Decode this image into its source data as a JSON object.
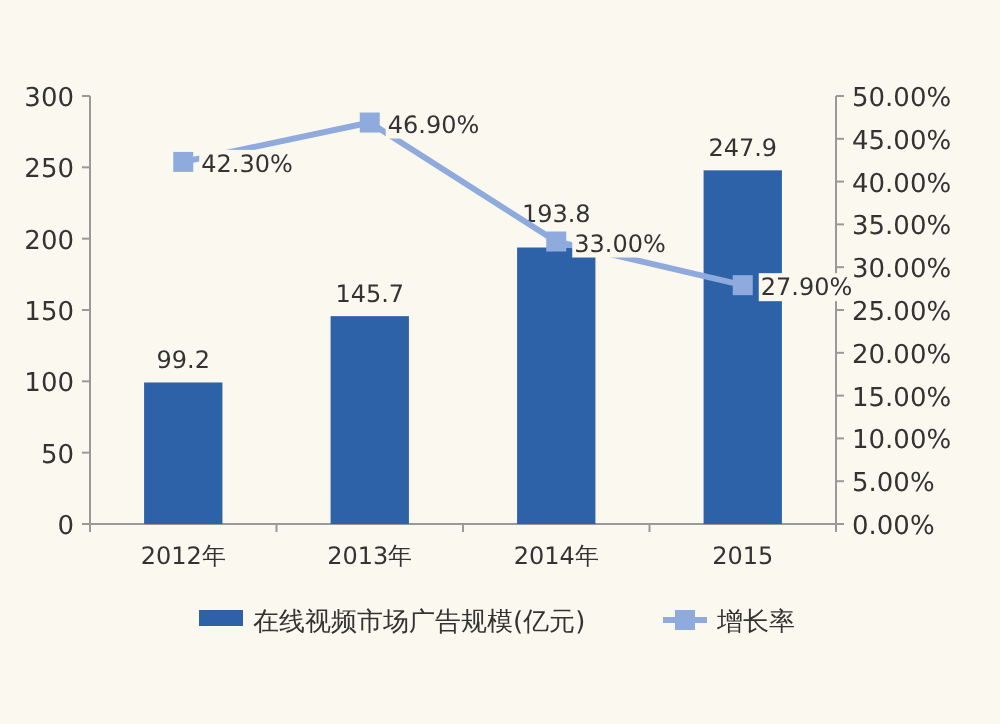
{
  "chart_data": {
    "type": "bar",
    "categories": [
      "2012年",
      "2013年",
      "2014年",
      "2015"
    ],
    "series": [
      {
        "name": "在线视频市场广告规模(亿元)",
        "color": "#2e62a8",
        "values": [
          99.2,
          145.7,
          193.8,
          247.9
        ],
        "value_labels": [
          "99.2",
          "145.7",
          "193.8",
          "247.9"
        ]
      },
      {
        "name": "增长率",
        "type": "line",
        "axis": "y2",
        "color": "#8faadc",
        "values": [
          42.3,
          46.9,
          33.0,
          27.9
        ],
        "value_labels": [
          "42.30%",
          "46.90%",
          "33.00%",
          "27.90%"
        ]
      }
    ],
    "ylim": [
      0,
      300
    ],
    "yticks": [
      0,
      50,
      100,
      150,
      200,
      250,
      300
    ],
    "y2lim": [
      0,
      50
    ],
    "y2ticks": [
      {
        "value": 0,
        "label": "0.00%"
      },
      {
        "value": 5,
        "label": "5.00%"
      },
      {
        "value": 10,
        "label": "10.00%"
      },
      {
        "value": 15,
        "label": "15.00%"
      },
      {
        "value": 20,
        "label": "20.00%"
      },
      {
        "value": 25,
        "label": "25.00%"
      },
      {
        "value": 30,
        "label": "30.00%"
      },
      {
        "value": 35,
        "label": "35.00%"
      },
      {
        "value": 40,
        "label": "40.00%"
      },
      {
        "value": 45,
        "label": "45.00%"
      },
      {
        "value": 50,
        "label": "50.00%"
      }
    ],
    "marker": "square",
    "legend": "bottom"
  }
}
